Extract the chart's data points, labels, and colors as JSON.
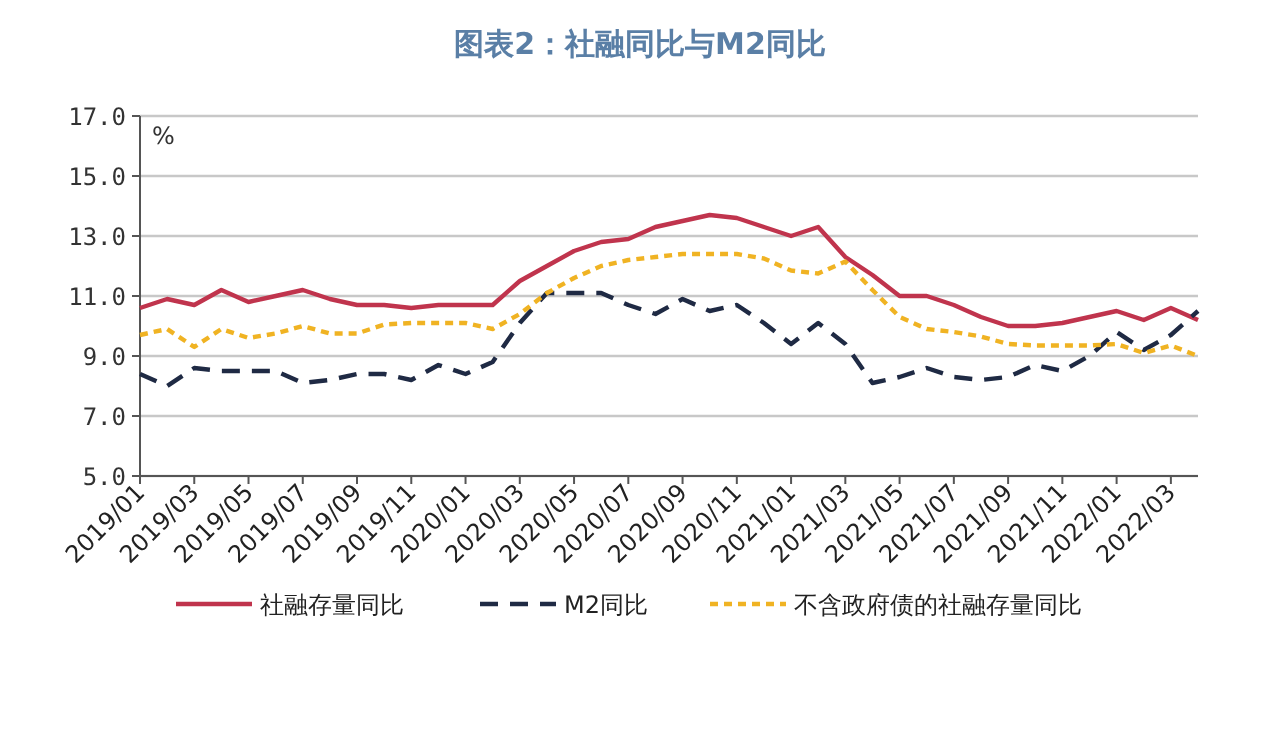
{
  "chart_data": {
    "type": "line",
    "title": "图表2：社融同比与M2同比",
    "ylabel": "%",
    "x": [
      "2019-01",
      "2019-02",
      "2019-03",
      "2019-04",
      "2019-05",
      "2019-06",
      "2019-07",
      "2019-08",
      "2019-09",
      "2019-10",
      "2019-11",
      "2019-12",
      "2020-01",
      "2020-02",
      "2020-03",
      "2020-04",
      "2020-05",
      "2020-06",
      "2020-07",
      "2020-08",
      "2020-09",
      "2020-10",
      "2020-11",
      "2020-12",
      "2021-01",
      "2021-02",
      "2021-03",
      "2021-04",
      "2021-05",
      "2021-06",
      "2021-07",
      "2021-08",
      "2021-09",
      "2021-10",
      "2021-11",
      "2021-12",
      "2022-01",
      "2022-02",
      "2022-03",
      "2022-04"
    ],
    "series": [
      {
        "name": "社融存量同比",
        "color": "#c0344d",
        "line_style": "solid",
        "values": [
          10.6,
          10.9,
          10.7,
          11.2,
          10.8,
          11.0,
          11.2,
          10.9,
          10.7,
          10.7,
          10.6,
          10.7,
          10.7,
          10.7,
          11.5,
          12.0,
          12.5,
          12.8,
          12.9,
          13.3,
          13.5,
          13.7,
          13.6,
          13.3,
          13.0,
          13.3,
          12.3,
          11.7,
          11.0,
          11.0,
          10.7,
          10.3,
          10.0,
          10.0,
          10.1,
          10.3,
          10.5,
          10.2,
          10.6,
          10.2
        ]
      },
      {
        "name": "M2同比",
        "color": "#1f2a44",
        "line_style": "dashed",
        "values": [
          8.4,
          8.0,
          8.6,
          8.5,
          8.5,
          8.5,
          8.1,
          8.2,
          8.4,
          8.4,
          8.2,
          8.7,
          8.4,
          8.8,
          10.1,
          11.1,
          11.1,
          11.1,
          10.7,
          10.4,
          10.9,
          10.5,
          10.7,
          10.1,
          9.4,
          10.1,
          9.4,
          8.1,
          8.3,
          8.6,
          8.3,
          8.2,
          8.3,
          8.7,
          8.5,
          9.0,
          9.8,
          9.2,
          9.7,
          10.5
        ]
      },
      {
        "name": "不含政府债的社融存量同比",
        "color": "#f0b323",
        "line_style": "dotted",
        "values": [
          9.7,
          9.9,
          9.3,
          9.9,
          9.6,
          9.75,
          10.0,
          9.75,
          9.75,
          10.05,
          10.1,
          10.1,
          10.1,
          9.9,
          10.4,
          11.1,
          11.6,
          12.0,
          12.2,
          12.3,
          12.4,
          12.4,
          12.4,
          12.25,
          11.85,
          11.75,
          12.15,
          11.2,
          10.3,
          9.9,
          9.8,
          9.65,
          9.4,
          9.35,
          9.35,
          9.35,
          9.4,
          9.1,
          9.35,
          9.0
        ]
      }
    ],
    "xlim": [
      "2019-01",
      "2022-04"
    ],
    "xticks": [
      {
        "value": "2019-01",
        "label": "2019/01"
      },
      {
        "value": "2019-03",
        "label": "2019/03"
      },
      {
        "value": "2019-05",
        "label": "2019/05"
      },
      {
        "value": "2019-07",
        "label": "2019/07"
      },
      {
        "value": "2019-09",
        "label": "2019/09"
      },
      {
        "value": "2019-11",
        "label": "2019/11"
      },
      {
        "value": "2020-01",
        "label": "2020/01"
      },
      {
        "value": "2020-03",
        "label": "2020/03"
      },
      {
        "value": "2020-05",
        "label": "2020/05"
      },
      {
        "value": "2020-07",
        "label": "2020/07"
      },
      {
        "value": "2020-09",
        "label": "2020/09"
      },
      {
        "value": "2020-11",
        "label": "2020/11"
      },
      {
        "value": "2021-01",
        "label": "2021/01"
      },
      {
        "value": "2021-03",
        "label": "2021/03"
      },
      {
        "value": "2021-05",
        "label": "2021/05"
      },
      {
        "value": "2021-07",
        "label": "2021/07"
      },
      {
        "value": "2021-09",
        "label": "2021/09"
      },
      {
        "value": "2021-11",
        "label": "2021/11"
      },
      {
        "value": "2022-01",
        "label": "2022/01"
      },
      {
        "value": "2022-03",
        "label": "2022/03"
      }
    ],
    "ylim": [
      5,
      17
    ],
    "yticks": [
      {
        "value": 5,
        "label": "5.0"
      },
      {
        "value": 7,
        "label": "7.0"
      },
      {
        "value": 9,
        "label": "9.0"
      },
      {
        "value": 11,
        "label": "11.0"
      },
      {
        "value": 13,
        "label": "13.0"
      },
      {
        "value": 15,
        "label": "15.0"
      },
      {
        "value": 17,
        "label": "17.0"
      }
    ],
    "grid": "y",
    "legend": "bottom",
    "marker": "none"
  }
}
